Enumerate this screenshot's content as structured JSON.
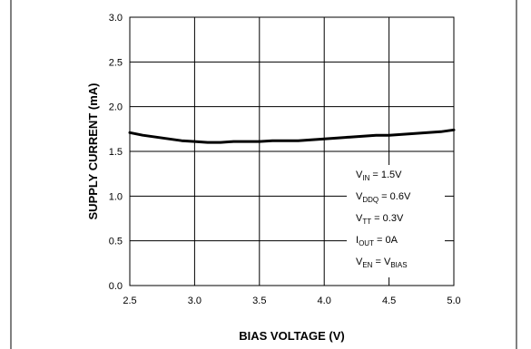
{
  "chart_data": {
    "type": "line",
    "title": "",
    "xlabel": "BIAS VOLTAGE (V)",
    "ylabel": "SUPPLY CURRENT (mA)",
    "xlim": [
      2.5,
      5.0
    ],
    "ylim": [
      0.0,
      3.0
    ],
    "xticks": [
      "2.5",
      "3.0",
      "3.5",
      "4.0",
      "4.5",
      "5.0"
    ],
    "yticks": [
      "0.0",
      "0.5",
      "1.0",
      "1.5",
      "2.0",
      "2.5",
      "3.0"
    ],
    "grid": true,
    "line_color": "#000000",
    "series": [
      {
        "x": [
          2.5,
          2.6,
          2.7,
          2.8,
          2.9,
          3.0,
          3.1,
          3.2,
          3.3,
          3.4,
          3.5,
          3.6,
          3.7,
          3.8,
          3.9,
          4.0,
          4.1,
          4.2,
          4.3,
          4.4,
          4.5,
          4.6,
          4.7,
          4.8,
          4.9,
          5.0
        ],
        "values": [
          1.71,
          1.68,
          1.66,
          1.64,
          1.62,
          1.61,
          1.6,
          1.6,
          1.61,
          1.61,
          1.61,
          1.62,
          1.62,
          1.62,
          1.63,
          1.64,
          1.65,
          1.66,
          1.67,
          1.68,
          1.68,
          1.69,
          1.7,
          1.71,
          1.72,
          1.74
        ]
      }
    ],
    "annotations": [
      {
        "main": "V",
        "sub": "IN",
        "rest": " = 1.5V"
      },
      {
        "main": "V",
        "sub": "DDQ",
        "rest": " = 0.6V"
      },
      {
        "main": "V",
        "sub": "TT",
        "rest": " = 0.3V"
      },
      {
        "main": "I",
        "sub": "OUT",
        "rest": " = 0A"
      },
      {
        "main": "V",
        "sub": "EN",
        "rest": " = V",
        "sub2": "BIAS"
      }
    ]
  }
}
